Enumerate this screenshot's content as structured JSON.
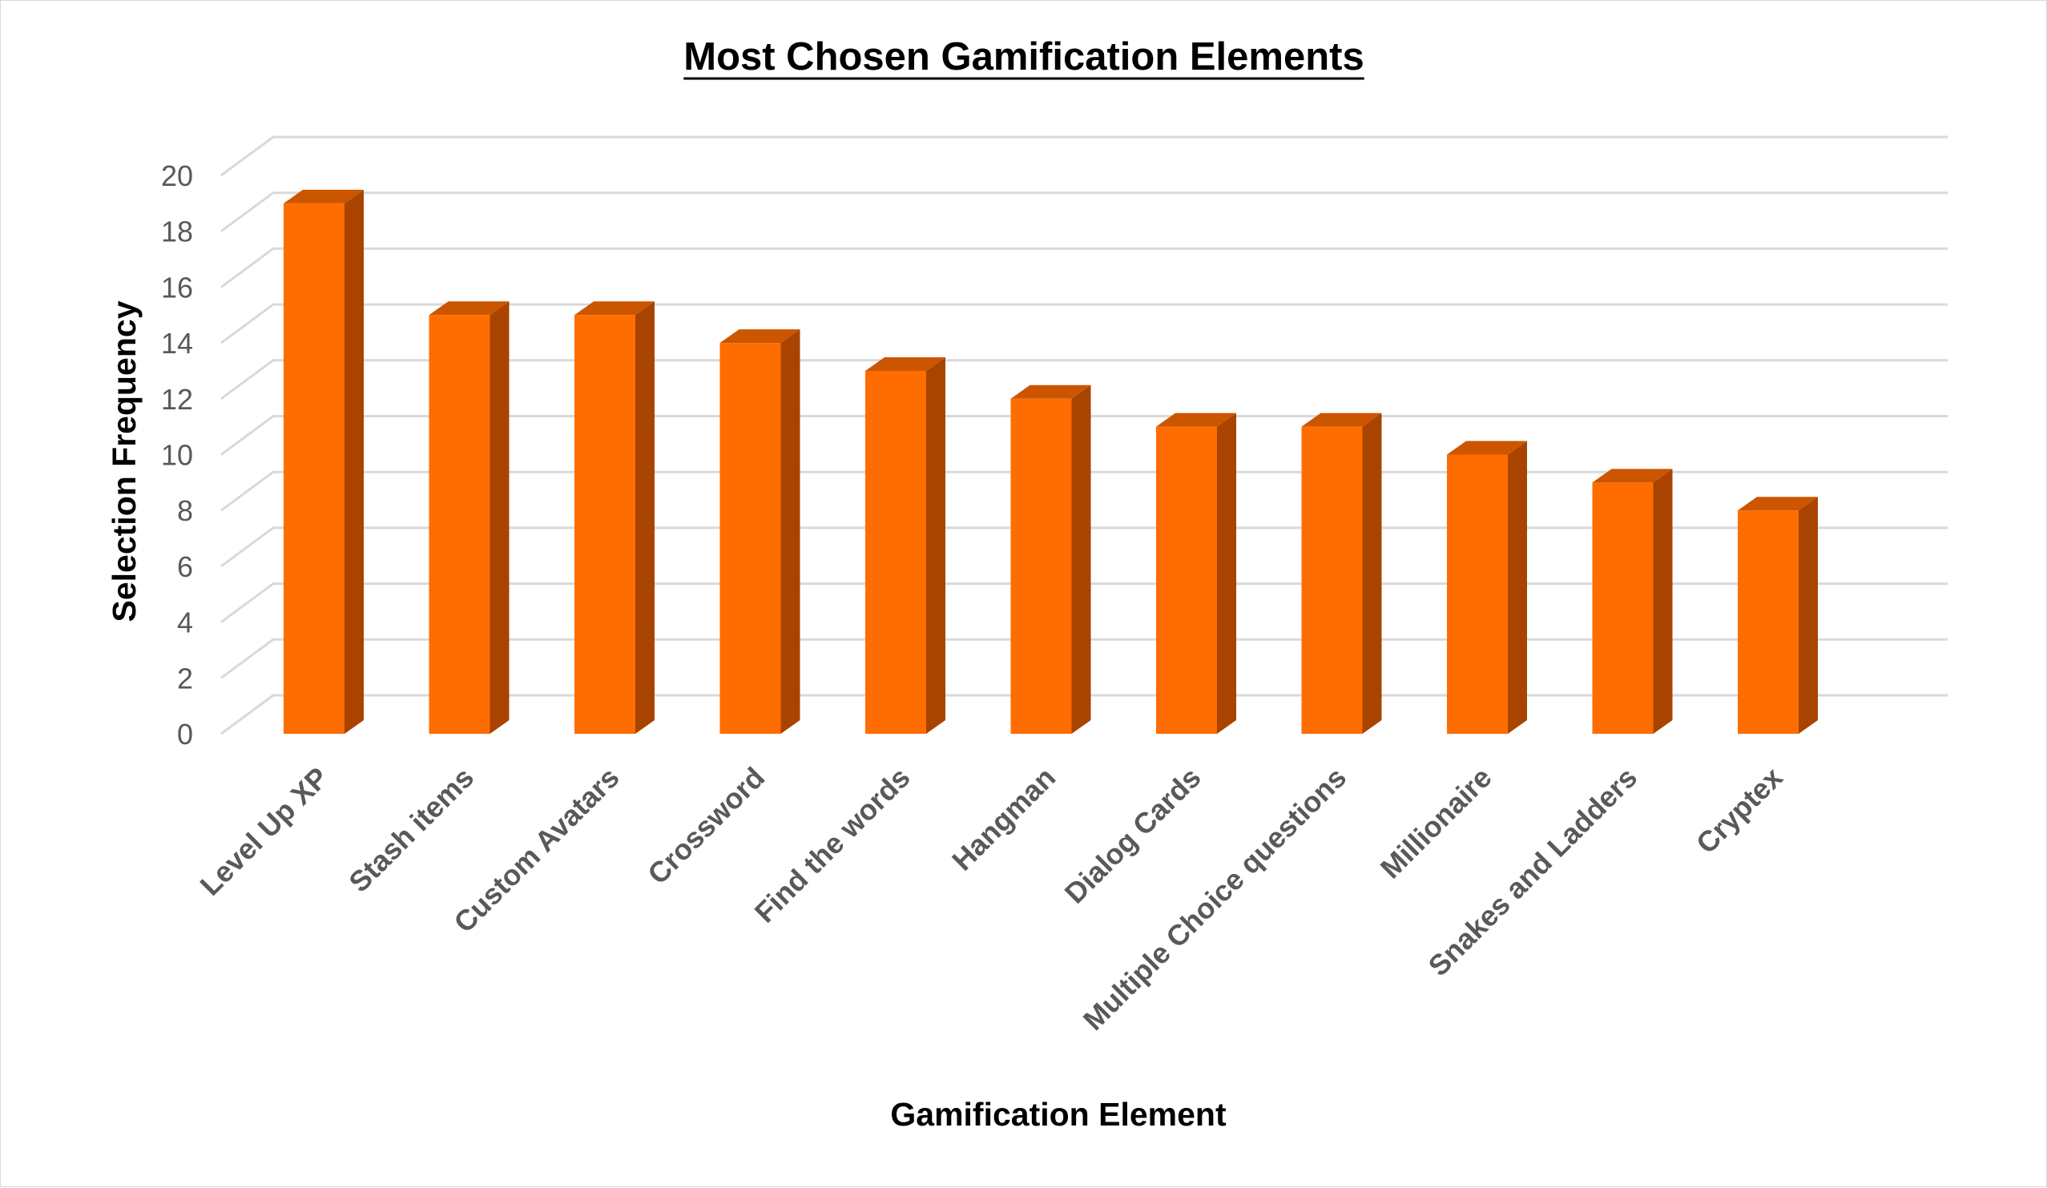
{
  "chart_data": {
    "type": "bar",
    "title": "Most Chosen Gamification Elements",
    "xlabel": "Gamification Element",
    "ylabel": "Selection Frequency",
    "categories": [
      "Level Up XP",
      "Stash items",
      "Custom Avatars",
      "Crossword",
      "Find the words",
      "Hangman",
      "Dialog Cards",
      "Multiple Choice questions",
      "Millionaire",
      "Snakes and Ladders",
      "Cryptex"
    ],
    "values": [
      19,
      15,
      15,
      14,
      13,
      12,
      11,
      11,
      10,
      9,
      8
    ],
    "ylim": [
      0,
      20
    ],
    "yticks": [
      0,
      2,
      4,
      6,
      8,
      10,
      12,
      14,
      16,
      18,
      20
    ],
    "grid": true,
    "legend": "none",
    "style": "3d-column",
    "colors": {
      "front": "#ff6d00",
      "side": "#a84400",
      "top": "#cc5500",
      "grid": "#d9d9d9"
    }
  }
}
